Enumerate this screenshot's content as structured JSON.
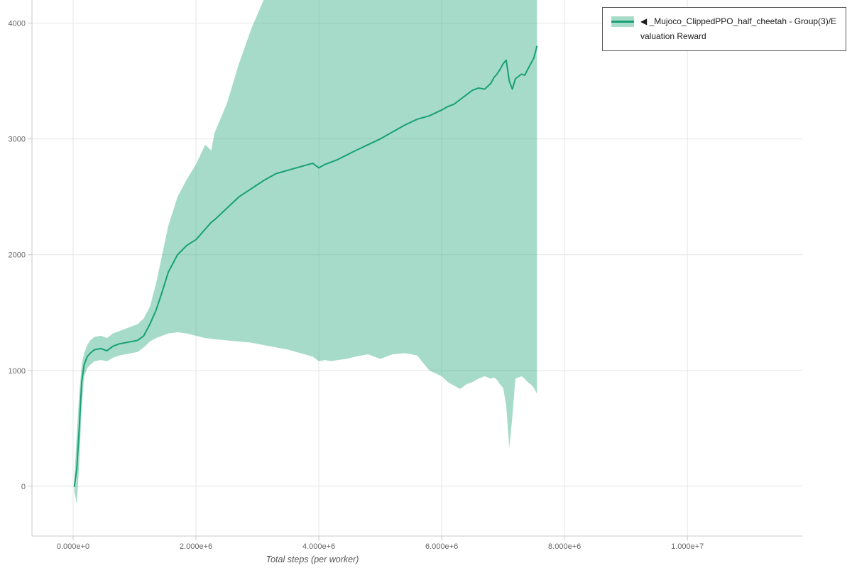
{
  "legend": {
    "label": "◀ _Mujoco_ClippedPPO_half_cheetah - Group(3)/Evaluation Reward",
    "swatch_band_color": "#a8dcc9",
    "swatch_line_color": "#17a077"
  },
  "chart_data": {
    "type": "line",
    "title": "",
    "xlabel": "Total steps (per worker)",
    "ylabel": "",
    "legend_position": "top-right",
    "grid": true,
    "xlim": [
      -670000,
      11870000
    ],
    "ylim": [
      -430,
      4200
    ],
    "x_tick_values": [
      0,
      2000000,
      4000000,
      6000000,
      8000000,
      10000000
    ],
    "x_tick_labels": [
      "0.000e+0",
      "2.000e+6",
      "4.000e+6",
      "6.000e+6",
      "8.000e+6",
      "1.000e+7"
    ],
    "y_tick_values": [
      0,
      1000,
      2000,
      3000,
      4000
    ],
    "y_tick_labels": [
      "0",
      "1000",
      "2000",
      "3000",
      "4000"
    ],
    "colors": {
      "line": "#17a077",
      "band": "#1ea476",
      "band_opacity": 0.4,
      "grid": "#e6e6e6",
      "axis": "#c8c8c8",
      "tick_text": "#666666"
    },
    "x": [
      20000,
      60000,
      100000,
      140000,
      180000,
      230000,
      280000,
      350000,
      450000,
      550000,
      650000,
      750000,
      850000,
      950000,
      1050000,
      1150000,
      1250000,
      1350000,
      1450000,
      1550000,
      1700000,
      1850000,
      2000000,
      2150000,
      2250000,
      2300000,
      2500000,
      2700000,
      2900000,
      3100000,
      3300000,
      3500000,
      3700000,
      3900000,
      4000000,
      4100000,
      4200000,
      4300000,
      4450000,
      4600000,
      4800000,
      5000000,
      5200000,
      5400000,
      5600000,
      5800000,
      6000000,
      6100000,
      6200000,
      6300000,
      6400000,
      6500000,
      6600000,
      6700000,
      6800000,
      6850000,
      6900000,
      6950000,
      7000000,
      7050000,
      7100000,
      7150000,
      7200000,
      7300000,
      7350000,
      7400000,
      7450000,
      7500000,
      7550000
    ],
    "series": [
      {
        "name": "◀ _Mujoco_ClippedPPO_half_cheetah - Group(3)/Evaluation Reward",
        "y": [
          0,
          150,
          500,
          900,
          1050,
          1120,
          1150,
          1180,
          1190,
          1170,
          1210,
          1230,
          1240,
          1250,
          1260,
          1300,
          1400,
          1520,
          1680,
          1850,
          2000,
          2080,
          2130,
          2220,
          2280,
          2300,
          2400,
          2500,
          2570,
          2640,
          2700,
          2730,
          2760,
          2790,
          2750,
          2780,
          2800,
          2820,
          2860,
          2900,
          2950,
          3000,
          3060,
          3120,
          3170,
          3200,
          3250,
          3280,
          3300,
          3340,
          3380,
          3420,
          3440,
          3430,
          3480,
          3530,
          3560,
          3600,
          3650,
          3680,
          3500,
          3430,
          3520,
          3560,
          3550,
          3600,
          3650,
          3700,
          3800
        ]
      }
    ],
    "band": {
      "lower": [
        -50,
        -150,
        200,
        700,
        950,
        1020,
        1050,
        1080,
        1090,
        1080,
        1110,
        1130,
        1140,
        1150,
        1160,
        1200,
        1250,
        1280,
        1300,
        1320,
        1330,
        1320,
        1300,
        1280,
        1275,
        1270,
        1260,
        1250,
        1240,
        1220,
        1200,
        1180,
        1150,
        1120,
        1080,
        1090,
        1080,
        1090,
        1100,
        1120,
        1140,
        1100,
        1140,
        1150,
        1130,
        1000,
        950,
        900,
        870,
        840,
        880,
        900,
        930,
        950,
        930,
        940,
        920,
        880,
        850,
        700,
        330,
        600,
        930,
        950,
        930,
        900,
        880,
        850,
        800
      ],
      "upper": [
        60,
        450,
        800,
        1050,
        1150,
        1220,
        1260,
        1290,
        1300,
        1280,
        1320,
        1340,
        1360,
        1380,
        1400,
        1450,
        1550,
        1750,
        2000,
        2250,
        2500,
        2650,
        2780,
        2950,
        2900,
        3050,
        3300,
        3650,
        3950,
        4200,
        4400,
        4400,
        4400,
        4400,
        4400,
        4400,
        4400,
        4400,
        4400,
        4400,
        4400,
        4400,
        4400,
        4400,
        4400,
        4400,
        4400,
        4400,
        4400,
        4400,
        4400,
        4400,
        4400,
        4400,
        4400,
        4400,
        4400,
        4400,
        4400,
        4400,
        4400,
        4400,
        4400,
        4400,
        4400,
        4400,
        4400,
        4400,
        4400
      ]
    }
  }
}
